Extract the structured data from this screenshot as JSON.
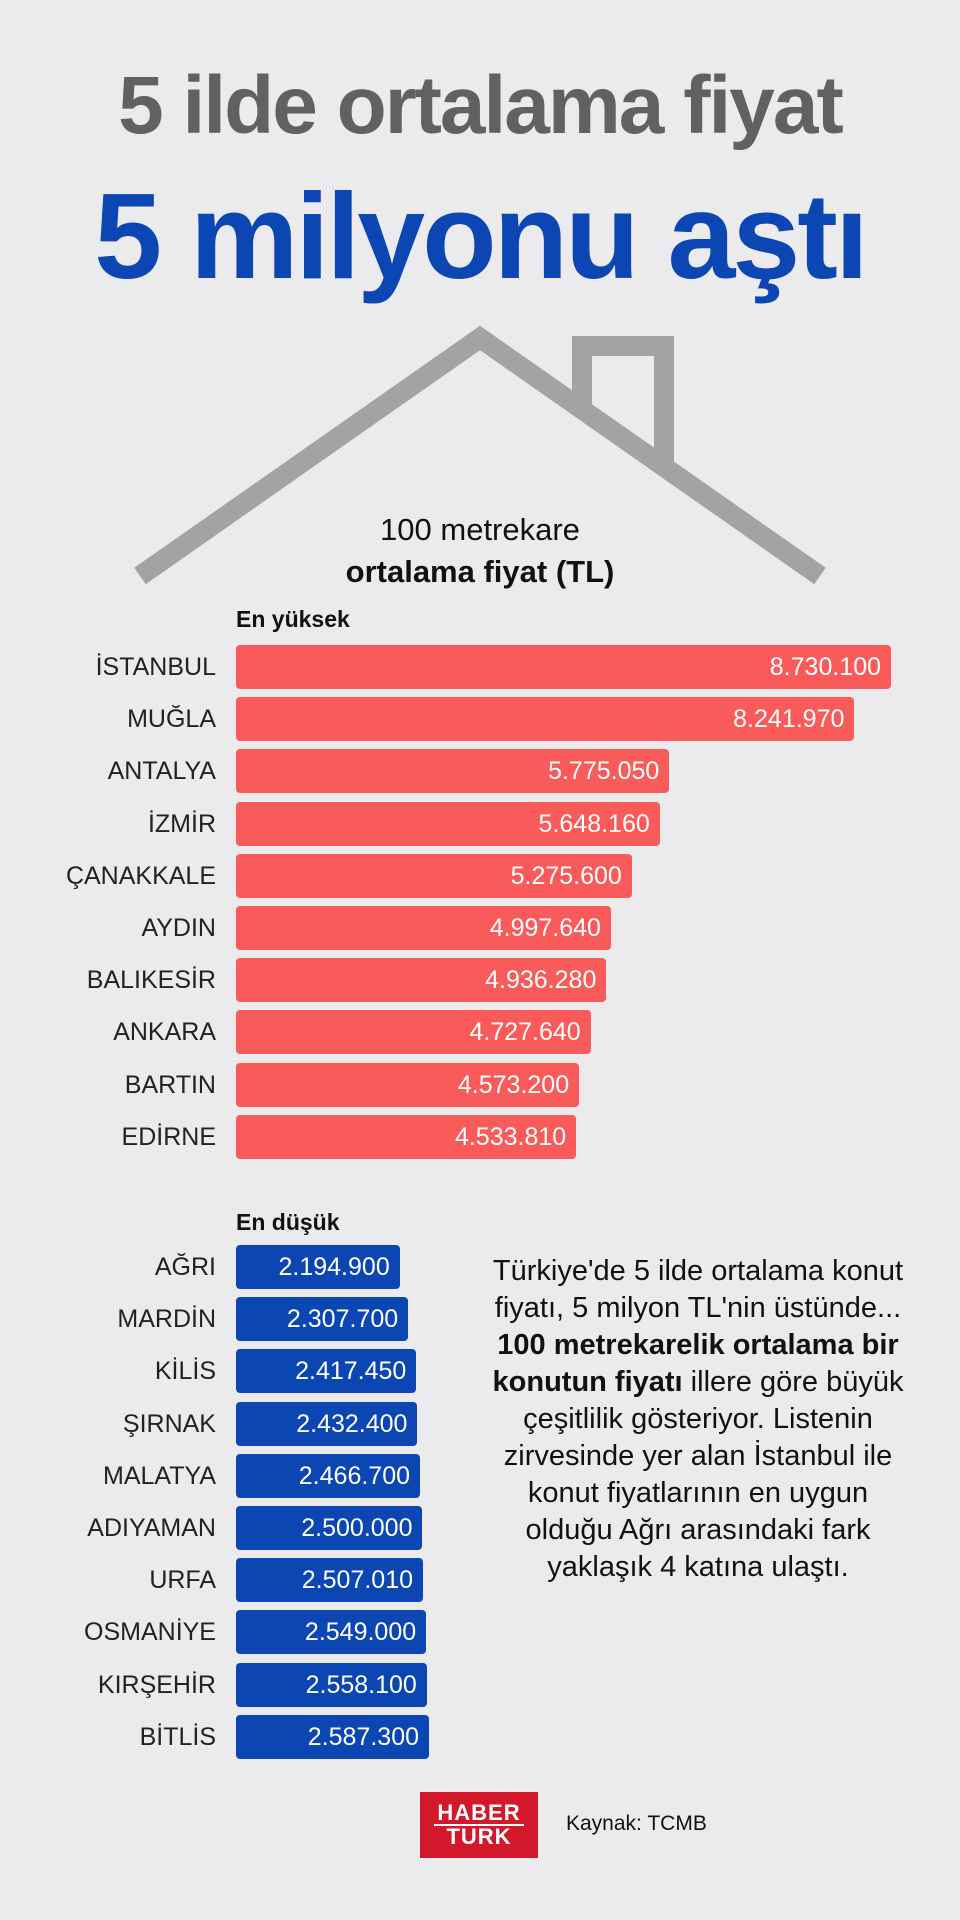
{
  "header": {
    "title_line1": "5 ilde ortalama fiyat",
    "title_line2": "5 milyonu aştı",
    "subtitle_line1": "100 metrekare",
    "subtitle_line2": "ortalama fiyat (TL)"
  },
  "colors": {
    "high_bar": "#f95b5b",
    "low_bar": "#0b46b3",
    "title_gray": "#616161",
    "title_blue": "#0b46b3",
    "roof": "#a3a3a3",
    "background": "#ebebed"
  },
  "chart_data": [
    {
      "type": "bar",
      "orientation": "horizontal",
      "title": "En yüksek",
      "categories": [
        "İSTANBUL",
        "MUĞLA",
        "ANTALYA",
        "İZMİR",
        "ÇANAKKALE",
        "AYDIN",
        "BALIKESİR",
        "ANKARA",
        "BARTIN",
        "EDİRNE"
      ],
      "values": [
        8730100,
        8241970,
        5775050,
        5648160,
        5275600,
        4997640,
        4936280,
        4727640,
        4573200,
        4533810
      ],
      "labels": [
        "8.730.100",
        "8.241.970",
        "5.775.050",
        "5.648.160",
        "5.275.600",
        "4.997.640",
        "4.936.280",
        "4.727.640",
        "4.573.200",
        "4.533.810"
      ]
    },
    {
      "type": "bar",
      "orientation": "horizontal",
      "title": "En düşük",
      "categories": [
        "AĞRI",
        "MARDİN",
        "KİLİS",
        "ŞIRNAK",
        "MALATYA",
        "ADIYAMAN",
        "URFA",
        "OSMANİYE",
        "KIRŞEHİR",
        "BİTLİS"
      ],
      "values": [
        2194900,
        2307700,
        2417450,
        2432400,
        2466700,
        2500000,
        2507010,
        2549000,
        2558100,
        2587300
      ],
      "labels": [
        "2.194.900",
        "2.307.700",
        "2.417.450",
        "2.432.400",
        "2.466.700",
        "2.500.000",
        "2.507.010",
        "2.549.000",
        "2.558.100",
        "2.587.300"
      ]
    }
  ],
  "description": {
    "part1": "Türkiye'de 5 ilde ortalama konut fiyatı, 5 milyon TL'nin üstünde...",
    "part2_bold": "100 metrekarelik ortalama bir konutun fiyatı",
    "part3": " illere göre büyük çeşitlilik gösteriyor. Listenin zirvesinde yer alan İstanbul ile konut fiyatlarının en uygun olduğu Ağrı arasındaki fark yaklaşık 4 katına ulaştı."
  },
  "footer": {
    "logo_line1": "HABER",
    "logo_line2": "TURK",
    "source": "Kaynak: TCMB"
  }
}
